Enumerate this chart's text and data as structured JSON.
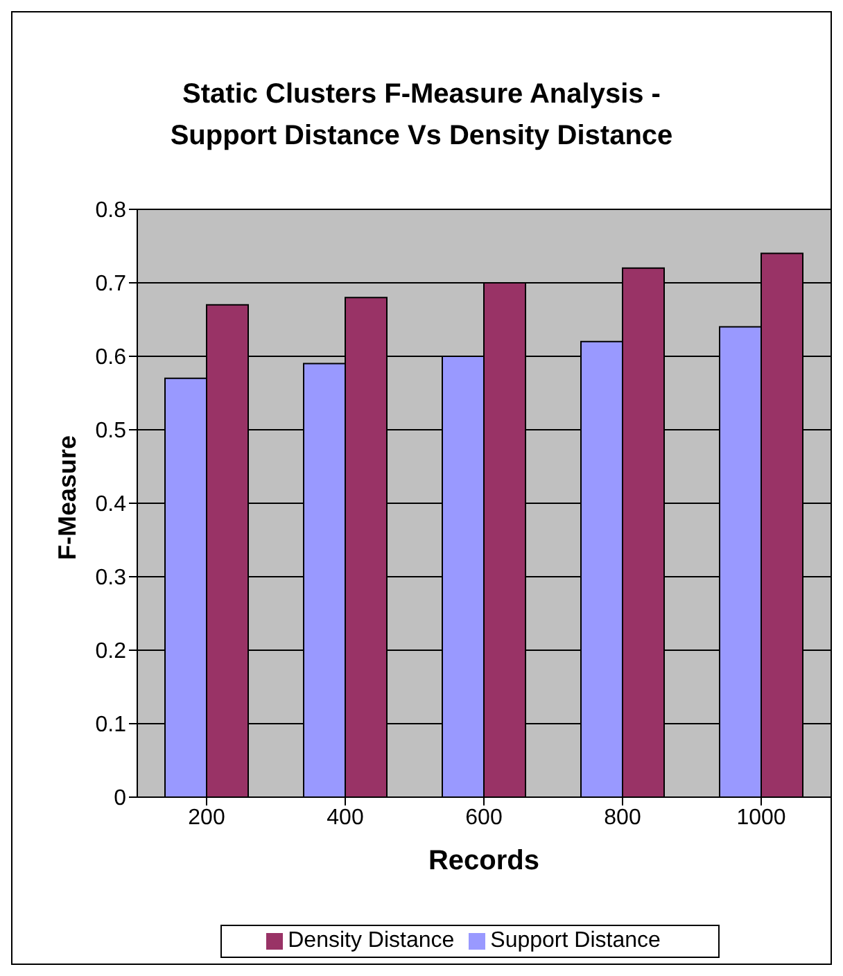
{
  "chart_data": {
    "type": "bar",
    "title": "Static Clusters F-Measure Analysis -\nSupport Distance Vs Density Distance",
    "xlabel": "Records",
    "ylabel": "F-Measure",
    "categories": [
      "200",
      "400",
      "600",
      "800",
      "1000"
    ],
    "series": [
      {
        "name": "Support Distance",
        "color": "#9999ff",
        "values": [
          0.57,
          0.59,
          0.6,
          0.62,
          0.64
        ]
      },
      {
        "name": "Density Distance",
        "color": "#993366",
        "values": [
          0.67,
          0.68,
          0.7,
          0.72,
          0.74
        ]
      }
    ],
    "ylim": [
      0,
      0.8
    ],
    "yticks": [
      0,
      0.1,
      0.2,
      0.3,
      0.4,
      0.5,
      0.6,
      0.7,
      0.8
    ],
    "grid": "y",
    "legend": "bottom"
  }
}
